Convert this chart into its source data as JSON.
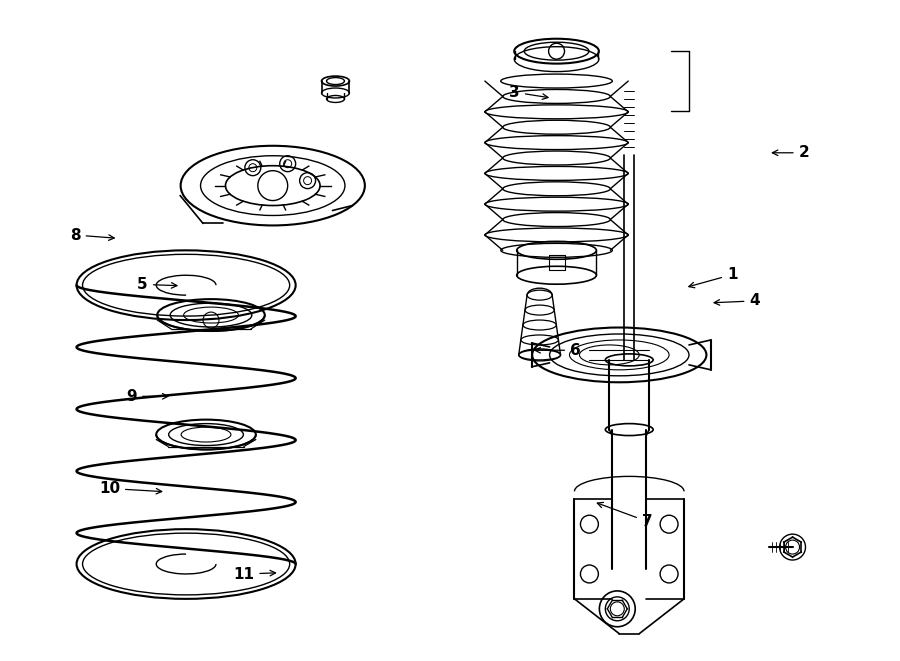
{
  "background_color": "#ffffff",
  "line_color": "#000000",
  "label_color": "#000000",
  "font_size": 11,
  "fig_width": 9.0,
  "fig_height": 6.61,
  "dpi": 100,
  "label_positions": {
    "1": [
      0.815,
      0.415,
      0.762,
      0.435
    ],
    "2": [
      0.895,
      0.23,
      0.855,
      0.23
    ],
    "3": [
      0.572,
      0.138,
      0.614,
      0.147
    ],
    "4": [
      0.84,
      0.455,
      0.79,
      0.458
    ],
    "5": [
      0.157,
      0.43,
      0.2,
      0.432
    ],
    "6": [
      0.64,
      0.53,
      0.59,
      0.53
    ],
    "7": [
      0.72,
      0.79,
      0.66,
      0.76
    ],
    "8": [
      0.082,
      0.355,
      0.13,
      0.36
    ],
    "9": [
      0.145,
      0.6,
      0.19,
      0.6
    ],
    "10": [
      0.12,
      0.74,
      0.183,
      0.745
    ],
    "11": [
      0.27,
      0.87,
      0.31,
      0.868
    ]
  }
}
